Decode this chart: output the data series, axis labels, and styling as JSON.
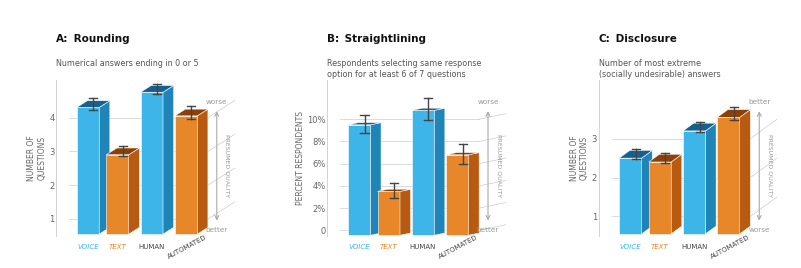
{
  "panels": [
    {
      "title_bold": "A:",
      "title_rest": " Rounding",
      "subtitle": "Numerical answers ending in 0 or 5",
      "ylabel": "NUMBER OF\nQUESTIONS",
      "yticks": [
        1,
        2,
        3,
        4
      ],
      "ytick_labels": [
        "1",
        "2",
        "3",
        "4"
      ],
      "ylim_low": 0.5,
      "ylim_high": 5.1,
      "quality_direction": "worse_up",
      "bars": [
        {
          "label": "VOICE",
          "value": 4.3,
          "err": 0.18,
          "color": "blue"
        },
        {
          "label": "TEXT",
          "value": 2.9,
          "err": 0.15,
          "color": "orange"
        },
        {
          "label": "HUMAN",
          "value": 4.75,
          "err": 0.15,
          "color": "blue"
        },
        {
          "label": "AUTOMATED",
          "value": 4.05,
          "err": 0.18,
          "color": "orange"
        }
      ]
    },
    {
      "title_bold": "B:",
      "title_rest": " Straightlining",
      "subtitle": "Respondents selecting same response\noption for at least 6 of 7 questions",
      "ylabel": "PERCENT RESPONDENTS",
      "yticks": [
        0,
        2,
        4,
        6,
        8,
        10
      ],
      "ytick_labels": [
        "0",
        "2%",
        "4%",
        "6%",
        "8%",
        "10%"
      ],
      "ylim_low": -0.5,
      "ylim_high": 13.5,
      "quality_direction": "worse_up",
      "bars": [
        {
          "label": "VOICE",
          "value": 9.5,
          "err": 0.8,
          "color": "blue"
        },
        {
          "label": "TEXT",
          "value": 3.5,
          "err": 0.7,
          "color": "orange"
        },
        {
          "label": "HUMAN",
          "value": 10.8,
          "err": 1.0,
          "color": "blue"
        },
        {
          "label": "AUTOMATED",
          "value": 6.8,
          "err": 0.9,
          "color": "orange"
        }
      ]
    },
    {
      "title_bold": "C:",
      "title_rest": " Disclosure",
      "subtitle": "Number of most extreme\n(socially undesirable) answers",
      "ylabel": "NUMBER OF\nQUESTIONS",
      "yticks": [
        1,
        2,
        3
      ],
      "ytick_labels": [
        "1",
        "2",
        "3"
      ],
      "ylim_low": 0.5,
      "ylim_high": 4.5,
      "quality_direction": "better_up",
      "bars": [
        {
          "label": "VOICE",
          "value": 2.5,
          "err": 0.13,
          "color": "blue"
        },
        {
          "label": "TEXT",
          "value": 2.4,
          "err": 0.13,
          "color": "orange"
        },
        {
          "label": "HUMAN",
          "value": 3.2,
          "err": 0.14,
          "color": "blue"
        },
        {
          "label": "AUTOMATED",
          "value": 3.55,
          "err": 0.16,
          "color": "orange"
        }
      ]
    }
  ],
  "blue_face": "#3db5e8",
  "blue_side": "#1f85b8",
  "blue_top": "#166090",
  "orange_face": "#e8862a",
  "orange_side": "#b85a10",
  "orange_top": "#8a4008",
  "voice_color": "#3db5e8",
  "text_color": "#e8862a",
  "human_color": "#444444",
  "auto_color": "#444444",
  "grid_color": "#cccccc",
  "arrow_color": "#aaaaaa",
  "pq_color": "#999999",
  "bg": "#ffffff"
}
